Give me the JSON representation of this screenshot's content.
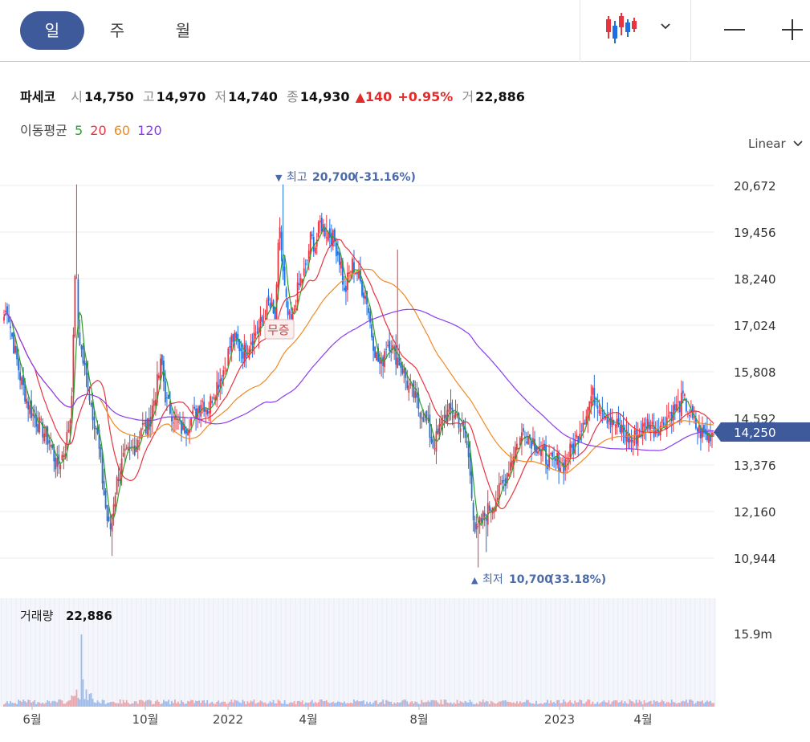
{
  "toolbar": {
    "periods": [
      "일",
      "주",
      "월"
    ],
    "active_period": "일",
    "chart_type_icon": "candlestick-icon",
    "zoom_out_icon": "minus-icon",
    "zoom_in_icon": "plus-icon"
  },
  "quote": {
    "name": "파세코",
    "open_label": "시",
    "open": "14,750",
    "high_label": "고",
    "high": "14,970",
    "low_label": "저",
    "low": "14,740",
    "close_label": "종",
    "close": "14,930",
    "change": "▲140",
    "change_pct": "+0.95%",
    "volume_label": "거",
    "volume": "22,886"
  },
  "moving_average": {
    "label": "이동평균",
    "periods": [
      "5",
      "20",
      "60",
      "120"
    ],
    "colors": [
      "#2ca02c",
      "#e8343f",
      "#f08a24",
      "#8a3cf0"
    ]
  },
  "scale_mode": "Linear",
  "colors": {
    "up": "#e8343f",
    "down": "#1f6fe0",
    "accent": "#3f5a9a"
  },
  "chart_data": {
    "type": "candlestick",
    "y_ticks": [
      "20,672",
      "19,456",
      "18,240",
      "17,024",
      "15,808",
      "14,592",
      "13,376",
      "12,160",
      "10,944"
    ],
    "ylim": [
      10300,
      21300
    ],
    "x_ticks": [
      "6월",
      "10월",
      "2022",
      "4월",
      "8월",
      "2023",
      "4월"
    ],
    "current_price": "14,250",
    "max_annotation": {
      "text": "최고",
      "value": "20,700",
      "pct": "(-31.16%)"
    },
    "min_annotation": {
      "text": "최저",
      "value": "10,700",
      "pct": "(33.18%)"
    },
    "event_marker": "무증",
    "ma_periods": [
      5,
      20,
      60,
      120
    ],
    "price_anchors": [
      [
        0,
        17000
      ],
      [
        8,
        17500
      ],
      [
        15,
        16600
      ],
      [
        25,
        15600
      ],
      [
        35,
        14900
      ],
      [
        45,
        14500
      ],
      [
        55,
        14200
      ],
      [
        62,
        13900
      ],
      [
        70,
        13300
      ],
      [
        80,
        13800
      ],
      [
        87,
        14700
      ],
      [
        90,
        16200
      ],
      [
        93,
        19000
      ],
      [
        96,
        17000
      ],
      [
        100,
        16400
      ],
      [
        103,
        16000
      ],
      [
        108,
        15500
      ],
      [
        113,
        14900
      ],
      [
        120,
        14200
      ],
      [
        127,
        12900
      ],
      [
        132,
        12000
      ],
      [
        136,
        11600
      ],
      [
        140,
        12400
      ],
      [
        146,
        13100
      ],
      [
        152,
        13500
      ],
      [
        160,
        13700
      ],
      [
        168,
        13900
      ],
      [
        175,
        14400
      ],
      [
        182,
        14300
      ],
      [
        188,
        14800
      ],
      [
        194,
        15400
      ],
      [
        200,
        16100
      ],
      [
        206,
        15000
      ],
      [
        212,
        14800
      ],
      [
        218,
        14500
      ],
      [
        226,
        14300
      ],
      [
        234,
        14500
      ],
      [
        242,
        14700
      ],
      [
        250,
        15100
      ],
      [
        258,
        14800
      ],
      [
        265,
        15300
      ],
      [
        272,
        15600
      ],
      [
        280,
        16000
      ],
      [
        288,
        16700
      ],
      [
        296,
        16500
      ],
      [
        304,
        16300
      ],
      [
        312,
        16700
      ],
      [
        320,
        16900
      ],
      [
        328,
        17200
      ],
      [
        333,
        17600
      ],
      [
        338,
        17400
      ],
      [
        342,
        17000
      ],
      [
        347,
        19800
      ],
      [
        352,
        18200
      ],
      [
        357,
        17300
      ],
      [
        362,
        17000
      ],
      [
        368,
        17800
      ],
      [
        374,
        18200
      ],
      [
        380,
        18500
      ],
      [
        386,
        19300
      ],
      [
        392,
        19100
      ],
      [
        398,
        19700
      ],
      [
        404,
        19500
      ],
      [
        410,
        19400
      ],
      [
        416,
        19200
      ],
      [
        420,
        18900
      ],
      [
        424,
        18600
      ],
      [
        428,
        17800
      ],
      [
        433,
        18300
      ],
      [
        438,
        18600
      ],
      [
        444,
        18400
      ],
      [
        450,
        18000
      ],
      [
        456,
        17700
      ],
      [
        462,
        16800
      ],
      [
        468,
        16200
      ],
      [
        474,
        15900
      ],
      [
        479,
        16500
      ],
      [
        484,
        16600
      ],
      [
        490,
        16300
      ],
      [
        496,
        16100
      ],
      [
        502,
        15800
      ],
      [
        508,
        15400
      ],
      [
        514,
        15200
      ],
      [
        520,
        14900
      ],
      [
        526,
        14700
      ],
      [
        532,
        14400
      ],
      [
        538,
        13900
      ],
      [
        544,
        14100
      ],
      [
        550,
        14600
      ],
      [
        556,
        14700
      ],
      [
        562,
        14800
      ],
      [
        568,
        14700
      ],
      [
        574,
        14300
      ],
      [
        580,
        14000
      ],
      [
        586,
        12900
      ],
      [
        590,
        11700
      ],
      [
        594,
        11600
      ],
      [
        598,
        11900
      ],
      [
        604,
        12100
      ],
      [
        610,
        12300
      ],
      [
        616,
        12500
      ],
      [
        622,
        12700
      ],
      [
        628,
        13000
      ],
      [
        634,
        13400
      ],
      [
        640,
        13800
      ],
      [
        646,
        14000
      ],
      [
        652,
        14300
      ],
      [
        658,
        14100
      ],
      [
        664,
        14000
      ],
      [
        670,
        13800
      ],
      [
        676,
        13600
      ],
      [
        682,
        13500
      ],
      [
        688,
        13400
      ],
      [
        694,
        13500
      ],
      [
        700,
        13300
      ],
      [
        706,
        13600
      ],
      [
        712,
        13800
      ],
      [
        718,
        14100
      ],
      [
        724,
        14500
      ],
      [
        730,
        14800
      ],
      [
        736,
        15200
      ],
      [
        742,
        15100
      ],
      [
        748,
        14900
      ],
      [
        754,
        14700
      ],
      [
        760,
        14500
      ],
      [
        766,
        14400
      ],
      [
        772,
        14300
      ],
      [
        778,
        14200
      ],
      [
        784,
        14000
      ],
      [
        790,
        14100
      ],
      [
        796,
        14200
      ],
      [
        802,
        14400
      ],
      [
        808,
        14500
      ],
      [
        814,
        14300
      ],
      [
        820,
        14400
      ],
      [
        826,
        14500
      ],
      [
        832,
        14700
      ],
      [
        838,
        14800
      ],
      [
        844,
        14900
      ],
      [
        850,
        15100
      ],
      [
        856,
        14800
      ],
      [
        862,
        14500
      ],
      [
        868,
        14300
      ],
      [
        874,
        14200
      ],
      [
        880,
        14100
      ],
      [
        886,
        14250
      ]
    ]
  }
}
